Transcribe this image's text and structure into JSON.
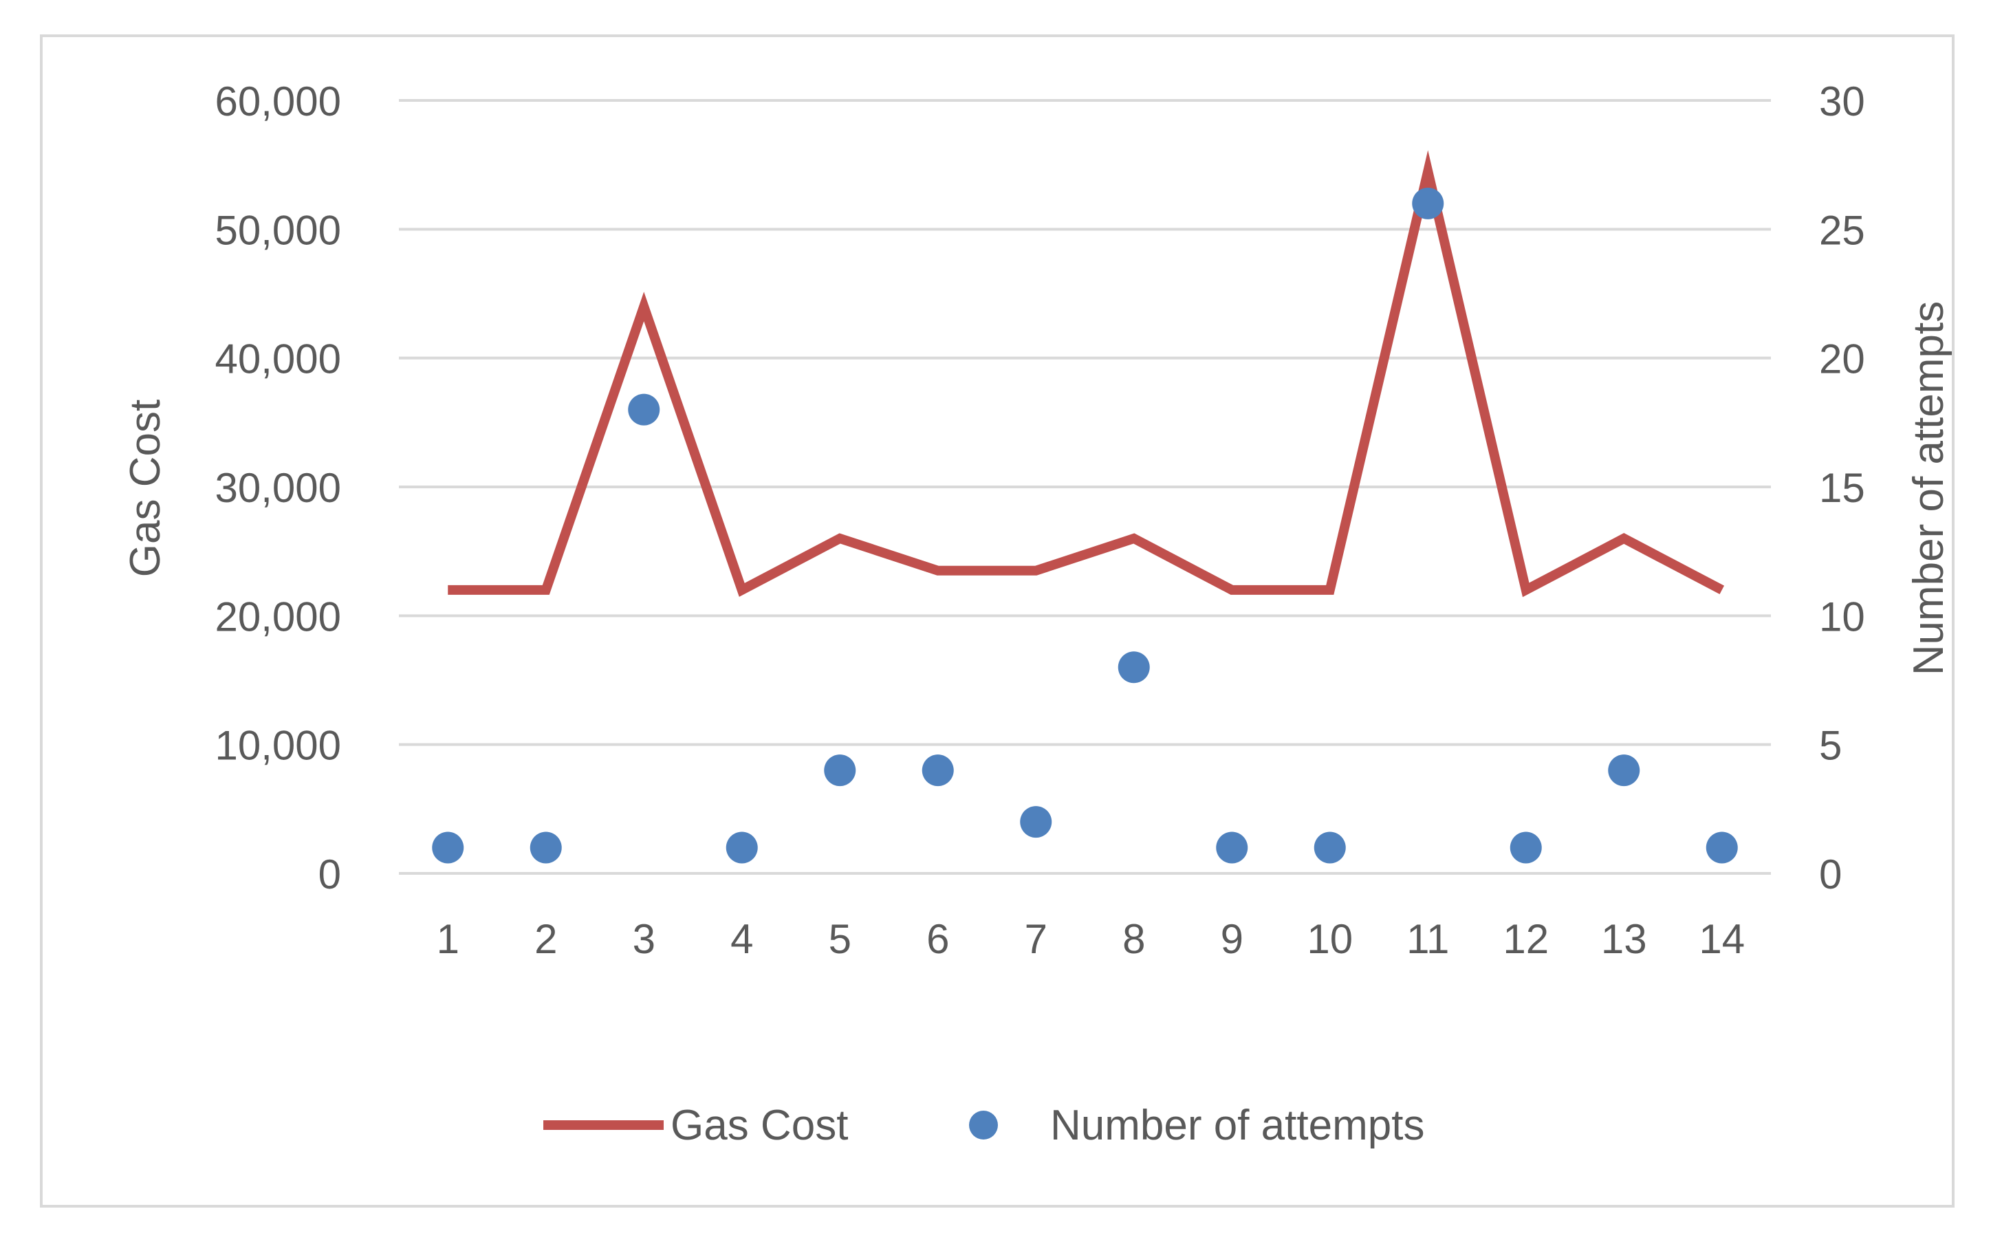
{
  "chart_data": {
    "type": "line",
    "title": "",
    "categories": [
      "1",
      "2",
      "3",
      "4",
      "5",
      "6",
      "7",
      "8",
      "9",
      "10",
      "11",
      "12",
      "13",
      "14"
    ],
    "series": [
      {
        "name": "Gas Cost",
        "type": "line",
        "axis": "left",
        "color": "#c0504d",
        "values": [
          22000,
          22000,
          44000,
          22000,
          26000,
          23500,
          23500,
          26000,
          22000,
          22000,
          54500,
          22000,
          26000,
          22000
        ]
      },
      {
        "name": "Number of attempts",
        "type": "scatter",
        "axis": "right",
        "color": "#4f81bd",
        "values": [
          1,
          1,
          18,
          1,
          4,
          4,
          2,
          8,
          1,
          1,
          26,
          1,
          4,
          1
        ]
      }
    ],
    "y_left": {
      "label": "Gas Cost",
      "min": 0,
      "max": 60000,
      "ticks": [
        "0",
        "10,000",
        "20,000",
        "30,000",
        "40,000",
        "50,000",
        "60,000"
      ]
    },
    "y_right": {
      "label": "Number of attempts",
      "min": 0,
      "max": 30,
      "ticks": [
        "0",
        "5",
        "10",
        "15",
        "20",
        "25",
        "30"
      ]
    },
    "grid": true,
    "legend_position": "bottom"
  }
}
